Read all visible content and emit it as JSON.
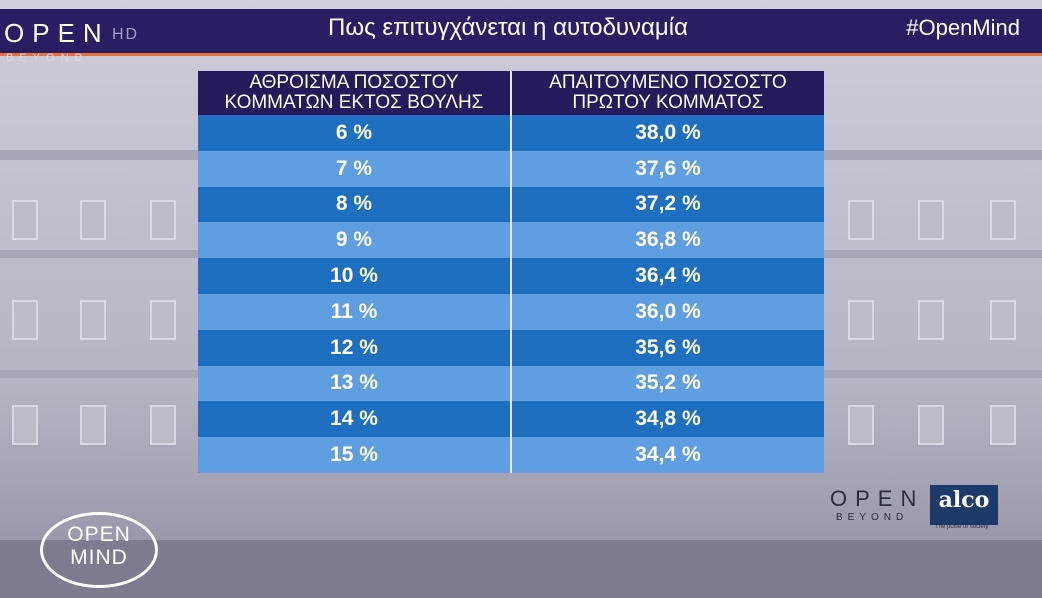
{
  "header": {
    "logo_open": "OPEN",
    "logo_hd": "HD",
    "logo_beyond": "BEYOND",
    "title": "Πως επιτυγχάνεται η αυτοδυναμία",
    "hashtag": "#OpenMind"
  },
  "table": {
    "headers": [
      "ΑΘΡΟΙΣΜΑ ΠΟΣΟΣΤΟΥ ΚΟΜΜΑΤΩΝ ΕΚΤΟΣ ΒΟΥΛΗΣ",
      "ΑΠΑΙΤΟΥΜΕΝΟ ΠΟΣΟΣΤΟ ΠΡΩΤΟΥ ΚΟΜΜΑΤΟΣ"
    ],
    "rows": [
      [
        "6 %",
        "38,0 %"
      ],
      [
        "7 %",
        "37,6 %"
      ],
      [
        "8 %",
        "37,2 %"
      ],
      [
        "9 %",
        "36,8 %"
      ],
      [
        "10 %",
        "36,4 %"
      ],
      [
        "11 %",
        "36,0 %"
      ],
      [
        "12 %",
        "35,6 %"
      ],
      [
        "13 %",
        "35,2 %"
      ],
      [
        "14 %",
        "34,8 %"
      ],
      [
        "15 %",
        "34,4 %"
      ]
    ]
  },
  "footer": {
    "open_logo": "OPEN",
    "open_beyond": "BEYOND",
    "alco_logo": "alco",
    "alco_tagline": "The pulse of society",
    "openmind_line1": "OPEN",
    "openmind_line2": "MIND"
  },
  "colors": {
    "header_bg": "#2a1d63",
    "accent": "#e8733a",
    "row_dark": "#1e6fbf",
    "row_light": "#5f9ee0"
  }
}
